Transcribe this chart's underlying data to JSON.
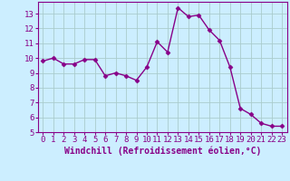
{
  "x": [
    0,
    1,
    2,
    3,
    4,
    5,
    6,
    7,
    8,
    9,
    10,
    11,
    12,
    13,
    14,
    15,
    16,
    17,
    18,
    19,
    20,
    21,
    22,
    23
  ],
  "y": [
    9.8,
    10.0,
    9.6,
    9.6,
    9.9,
    9.9,
    8.8,
    9.0,
    8.8,
    8.5,
    9.4,
    11.1,
    10.4,
    13.4,
    12.8,
    12.9,
    11.9,
    11.2,
    9.4,
    6.6,
    6.2,
    5.6,
    5.4,
    5.4
  ],
  "line_color": "#880088",
  "marker": "D",
  "marker_size": 2.5,
  "bg_color": "#cceeff",
  "grid_color": "#aacccc",
  "xlabel": "Windchill (Refroidissement éolien,°C)",
  "xlim_min": -0.5,
  "xlim_max": 23.5,
  "ylim_min": 5,
  "ylim_max": 13.8,
  "yticks": [
    5,
    6,
    7,
    8,
    9,
    10,
    11,
    12,
    13
  ],
  "xticks": [
    0,
    1,
    2,
    3,
    4,
    5,
    6,
    7,
    8,
    9,
    10,
    11,
    12,
    13,
    14,
    15,
    16,
    17,
    18,
    19,
    20,
    21,
    22,
    23
  ],
  "tick_fontsize": 6.5,
  "label_fontsize": 7
}
